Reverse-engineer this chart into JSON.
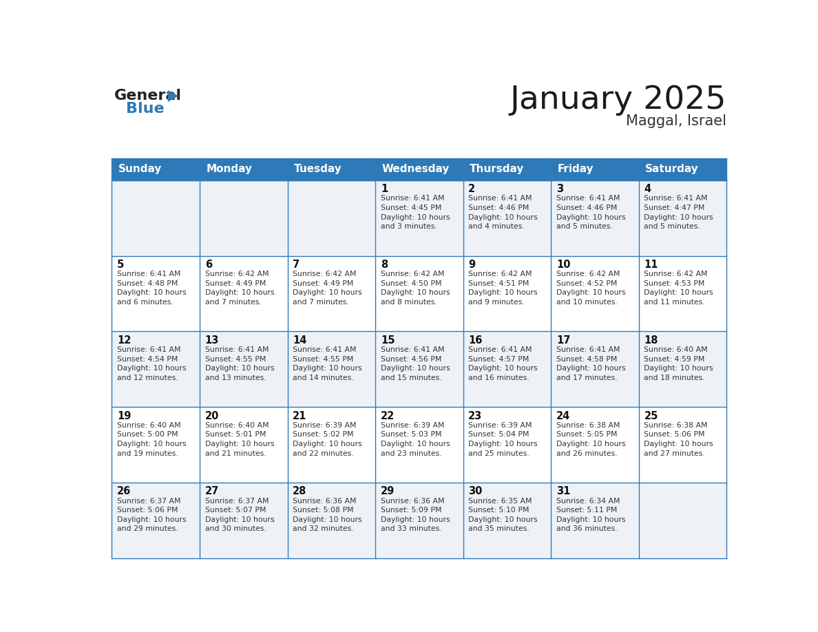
{
  "title": "January 2025",
  "subtitle": "Maggal, Israel",
  "header_bg": "#2E7AB8",
  "header_text_color": "#FFFFFF",
  "row_bg_odd": "#EEF2F7",
  "row_bg_even": "#FFFFFF",
  "grid_color": "#2E7AB8",
  "day_headers": [
    "Sunday",
    "Monday",
    "Tuesday",
    "Wednesday",
    "Thursday",
    "Friday",
    "Saturday"
  ],
  "title_color": "#1a1a1a",
  "subtitle_color": "#333333",
  "cell_text_color": "#333333",
  "cell_day_color": "#111111",
  "logo_black": "#222222",
  "logo_blue": "#2E7AB8",
  "triangle_color": "#2E7AB8",
  "calendar": [
    [
      {
        "day": "",
        "info": ""
      },
      {
        "day": "",
        "info": ""
      },
      {
        "day": "",
        "info": ""
      },
      {
        "day": "1",
        "info": "Sunrise: 6:41 AM\nSunset: 4:45 PM\nDaylight: 10 hours\nand 3 minutes."
      },
      {
        "day": "2",
        "info": "Sunrise: 6:41 AM\nSunset: 4:46 PM\nDaylight: 10 hours\nand 4 minutes."
      },
      {
        "day": "3",
        "info": "Sunrise: 6:41 AM\nSunset: 4:46 PM\nDaylight: 10 hours\nand 5 minutes."
      },
      {
        "day": "4",
        "info": "Sunrise: 6:41 AM\nSunset: 4:47 PM\nDaylight: 10 hours\nand 5 minutes."
      }
    ],
    [
      {
        "day": "5",
        "info": "Sunrise: 6:41 AM\nSunset: 4:48 PM\nDaylight: 10 hours\nand 6 minutes."
      },
      {
        "day": "6",
        "info": "Sunrise: 6:42 AM\nSunset: 4:49 PM\nDaylight: 10 hours\nand 7 minutes."
      },
      {
        "day": "7",
        "info": "Sunrise: 6:42 AM\nSunset: 4:49 PM\nDaylight: 10 hours\nand 7 minutes."
      },
      {
        "day": "8",
        "info": "Sunrise: 6:42 AM\nSunset: 4:50 PM\nDaylight: 10 hours\nand 8 minutes."
      },
      {
        "day": "9",
        "info": "Sunrise: 6:42 AM\nSunset: 4:51 PM\nDaylight: 10 hours\nand 9 minutes."
      },
      {
        "day": "10",
        "info": "Sunrise: 6:42 AM\nSunset: 4:52 PM\nDaylight: 10 hours\nand 10 minutes."
      },
      {
        "day": "11",
        "info": "Sunrise: 6:42 AM\nSunset: 4:53 PM\nDaylight: 10 hours\nand 11 minutes."
      }
    ],
    [
      {
        "day": "12",
        "info": "Sunrise: 6:41 AM\nSunset: 4:54 PM\nDaylight: 10 hours\nand 12 minutes."
      },
      {
        "day": "13",
        "info": "Sunrise: 6:41 AM\nSunset: 4:55 PM\nDaylight: 10 hours\nand 13 minutes."
      },
      {
        "day": "14",
        "info": "Sunrise: 6:41 AM\nSunset: 4:55 PM\nDaylight: 10 hours\nand 14 minutes."
      },
      {
        "day": "15",
        "info": "Sunrise: 6:41 AM\nSunset: 4:56 PM\nDaylight: 10 hours\nand 15 minutes."
      },
      {
        "day": "16",
        "info": "Sunrise: 6:41 AM\nSunset: 4:57 PM\nDaylight: 10 hours\nand 16 minutes."
      },
      {
        "day": "17",
        "info": "Sunrise: 6:41 AM\nSunset: 4:58 PM\nDaylight: 10 hours\nand 17 minutes."
      },
      {
        "day": "18",
        "info": "Sunrise: 6:40 AM\nSunset: 4:59 PM\nDaylight: 10 hours\nand 18 minutes."
      }
    ],
    [
      {
        "day": "19",
        "info": "Sunrise: 6:40 AM\nSunset: 5:00 PM\nDaylight: 10 hours\nand 19 minutes."
      },
      {
        "day": "20",
        "info": "Sunrise: 6:40 AM\nSunset: 5:01 PM\nDaylight: 10 hours\nand 21 minutes."
      },
      {
        "day": "21",
        "info": "Sunrise: 6:39 AM\nSunset: 5:02 PM\nDaylight: 10 hours\nand 22 minutes."
      },
      {
        "day": "22",
        "info": "Sunrise: 6:39 AM\nSunset: 5:03 PM\nDaylight: 10 hours\nand 23 minutes."
      },
      {
        "day": "23",
        "info": "Sunrise: 6:39 AM\nSunset: 5:04 PM\nDaylight: 10 hours\nand 25 minutes."
      },
      {
        "day": "24",
        "info": "Sunrise: 6:38 AM\nSunset: 5:05 PM\nDaylight: 10 hours\nand 26 minutes."
      },
      {
        "day": "25",
        "info": "Sunrise: 6:38 AM\nSunset: 5:06 PM\nDaylight: 10 hours\nand 27 minutes."
      }
    ],
    [
      {
        "day": "26",
        "info": "Sunrise: 6:37 AM\nSunset: 5:06 PM\nDaylight: 10 hours\nand 29 minutes."
      },
      {
        "day": "27",
        "info": "Sunrise: 6:37 AM\nSunset: 5:07 PM\nDaylight: 10 hours\nand 30 minutes."
      },
      {
        "day": "28",
        "info": "Sunrise: 6:36 AM\nSunset: 5:08 PM\nDaylight: 10 hours\nand 32 minutes."
      },
      {
        "day": "29",
        "info": "Sunrise: 6:36 AM\nSunset: 5:09 PM\nDaylight: 10 hours\nand 33 minutes."
      },
      {
        "day": "30",
        "info": "Sunrise: 6:35 AM\nSunset: 5:10 PM\nDaylight: 10 hours\nand 35 minutes."
      },
      {
        "day": "31",
        "info": "Sunrise: 6:34 AM\nSunset: 5:11 PM\nDaylight: 10 hours\nand 36 minutes."
      },
      {
        "day": "",
        "info": ""
      }
    ]
  ]
}
